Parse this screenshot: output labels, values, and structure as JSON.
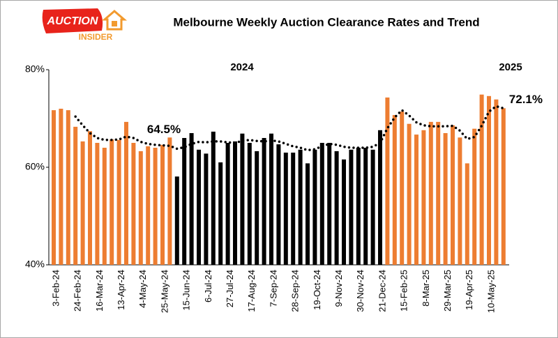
{
  "logo": {
    "line1": "AUCTION",
    "line2": "INSIDER"
  },
  "chart_data": {
    "type": "bar",
    "title": "Melbourne Weekly Auction Clearance Rates and Trend",
    "year_labels": [
      "2024",
      "2025"
    ],
    "categories": [
      "3-Feb-24",
      null,
      null,
      "24-Feb-24",
      null,
      null,
      "16-Mar-24",
      null,
      null,
      "13-Apr-24",
      null,
      null,
      "4-May-24",
      null,
      null,
      "25-May-24",
      null,
      null,
      "15-Jun-24",
      null,
      null,
      "6-Jul-24",
      null,
      null,
      "27-Jul-24",
      null,
      null,
      "17-Aug-24",
      null,
      null,
      "7-Sep-24",
      null,
      null,
      "28-Sep-24",
      null,
      null,
      "19-Oct-24",
      null,
      null,
      "9-Nov-24",
      null,
      null,
      "30-Nov-24",
      null,
      null,
      "21-Dec-24",
      null,
      null,
      "15-Feb-25",
      null,
      null,
      "8-Mar-25",
      null,
      null,
      "29-Mar-25",
      null,
      null,
      "19-Apr-25",
      null,
      null,
      "10-May-25",
      null,
      null
    ],
    "series": [
      {
        "type": "bar",
        "colors": [
          "#ED7D31",
          "#ED7D31",
          "#ED7D31",
          "#ED7D31",
          "#ED7D31",
          "#ED7D31",
          "#ED7D31",
          "#ED7D31",
          "#ED7D31",
          "#ED7D31",
          "#ED7D31",
          "#ED7D31",
          "#ED7D31",
          "#ED7D31",
          "#ED7D31",
          "#ED7D31",
          "#ED7D31",
          "#000000",
          "#000000",
          "#000000",
          "#000000",
          "#000000",
          "#000000",
          "#000000",
          "#000000",
          "#000000",
          "#000000",
          "#000000",
          "#000000",
          "#000000",
          "#000000",
          "#000000",
          "#000000",
          "#000000",
          "#000000",
          "#000000",
          "#000000",
          "#000000",
          "#000000",
          "#000000",
          "#000000",
          "#000000",
          "#000000",
          "#000000",
          "#000000",
          "#000000",
          "#ED7D31",
          "#ED7D31",
          "#ED7D31",
          "#ED7D31",
          "#ED7D31",
          "#ED7D31",
          "#ED7D31",
          "#ED7D31",
          "#ED7D31",
          "#ED7D31",
          "#ED7D31",
          "#ED7D31",
          "#ED7D31",
          "#ED7D31",
          "#ED7D31",
          "#ED7D31",
          "#ED7D31"
        ],
        "values": [
          71.7,
          72,
          71.7,
          68.3,
          65.3,
          67.4,
          65,
          64,
          65.7,
          65.6,
          69.3,
          65,
          63.3,
          64.3,
          64,
          64.6,
          66.1,
          58.1,
          66,
          67,
          63.6,
          62.8,
          67.3,
          61,
          65,
          65.3,
          66.9,
          65,
          63.3,
          66,
          66.9,
          64.7,
          63,
          63,
          63.6,
          60.8,
          63.6,
          65,
          65,
          63.3,
          61.6,
          63.6,
          64,
          64,
          63.6,
          67.6,
          74.3,
          70.7,
          71.4,
          68.9,
          66.7,
          67.6,
          69.3,
          69.3,
          67,
          68.6,
          66.1,
          60.8,
          67.9,
          74.9,
          74.6,
          73.9,
          72.1
        ]
      },
      {
        "type": "line",
        "color": "#000000",
        "values": [
          null,
          null,
          null,
          70.4,
          68.6,
          67,
          66,
          65.6,
          65.6,
          65.7,
          66.3,
          66,
          65.2,
          64.8,
          64.6,
          64.5,
          64.4,
          63.8,
          64.1,
          64.8,
          65.2,
          65.1,
          65.3,
          65.3,
          65.1,
          65,
          65.4,
          65.6,
          65.4,
          65.3,
          65.5,
          65.3,
          64.8,
          64.3,
          64,
          63.5,
          63.7,
          64.3,
          64.8,
          64.6,
          64.2,
          64,
          64,
          64,
          64.2,
          65,
          68,
          70.2,
          71.7,
          70.6,
          69.2,
          68.6,
          68.4,
          68.4,
          68.4,
          68.5,
          67.5,
          65.8,
          66.2,
          68.5,
          71.4,
          72.5,
          72.1
        ],
        "value_labels": [
          null,
          null,
          null,
          null,
          null,
          null,
          null,
          null,
          null,
          null,
          null,
          null,
          null,
          null,
          null,
          "64.5%",
          null,
          null,
          null,
          null,
          null,
          null,
          null,
          null,
          null,
          null,
          null,
          null,
          null,
          null,
          null,
          null,
          null,
          null,
          null,
          null,
          null,
          null,
          null,
          null,
          null,
          null,
          null,
          null,
          null,
          null,
          null,
          null,
          null,
          null,
          null,
          null,
          null,
          null,
          null,
          null,
          null,
          null,
          null,
          null,
          null,
          null,
          "72.1%"
        ]
      }
    ],
    "ylim": [
      40,
      80
    ],
    "yticks": [
      {
        "value": 40,
        "label": "40%"
      },
      {
        "value": 60,
        "label": "60%"
      },
      {
        "value": 80,
        "label": "80%"
      }
    ]
  }
}
